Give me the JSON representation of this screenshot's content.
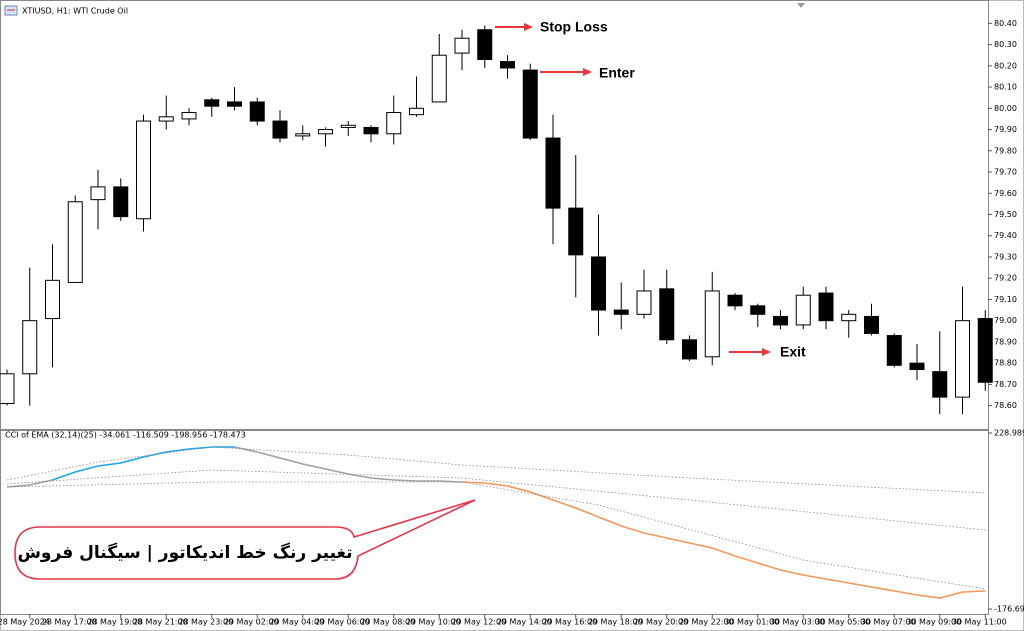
{
  "chart_data": [
    {
      "type": "candlestick",
      "title": "XTIUSD, H1: WTI Crude Oil",
      "categories": [
        null,
        "28 May 2024",
        null,
        "28 May 17:00",
        null,
        "28 May 19:00",
        null,
        "28 May 21:00",
        null,
        "28 May 23:00",
        null,
        "29 May 02:00",
        null,
        "29 May 04:00",
        null,
        "29 May 06:00",
        null,
        "29 May 08:00",
        null,
        "29 May 10:00",
        null,
        "29 May 12:00",
        null,
        "29 May 14:00",
        null,
        "29 May 16:00",
        null,
        "29 May 18:00",
        null,
        "29 May 20:00",
        null,
        "29 May 22:00",
        null,
        "30 May 01:00",
        null,
        "30 May 03:00",
        null,
        "30 May 05:00",
        null,
        "30 May 07:00",
        null,
        "30 May 09:00",
        null,
        "30 May 11:00"
      ],
      "open": [
        78.61,
        78.75,
        79.01,
        79.18,
        79.57,
        79.63,
        79.48,
        79.94,
        79.95,
        80.04,
        80.03,
        80.03,
        79.94,
        79.87,
        79.88,
        79.91,
        79.91,
        79.88,
        79.97,
        80.03,
        80.26,
        80.37,
        80.22,
        80.18,
        79.86,
        79.53,
        79.3,
        79.05,
        79.03,
        79.15,
        78.91,
        78.83,
        79.12,
        79.07,
        79.02,
        78.98,
        79.13,
        79.0,
        79.02,
        78.93,
        78.8,
        78.76,
        78.64,
        79.01
      ],
      "high": [
        78.77,
        79.25,
        79.36,
        79.59,
        79.71,
        79.67,
        79.97,
        80.06,
        80.0,
        80.05,
        80.1,
        80.05,
        79.99,
        79.92,
        79.91,
        79.94,
        79.92,
        80.06,
        80.15,
        80.35,
        80.37,
        80.39,
        80.25,
        80.21,
        79.97,
        79.78,
        79.5,
        79.18,
        79.24,
        79.24,
        78.93,
        79.23,
        79.13,
        79.08,
        79.05,
        79.16,
        79.16,
        79.05,
        79.08,
        78.94,
        78.89,
        78.95,
        79.16,
        79.05
      ],
      "low": [
        78.6,
        78.6,
        78.78,
        79.18,
        79.43,
        79.47,
        79.42,
        79.9,
        79.92,
        79.96,
        79.99,
        79.92,
        79.84,
        79.85,
        79.82,
        79.87,
        79.84,
        79.83,
        79.96,
        80.03,
        80.18,
        80.19,
        80.14,
        79.85,
        79.36,
        79.11,
        78.93,
        78.96,
        79.01,
        78.89,
        78.81,
        78.79,
        79.05,
        78.97,
        78.96,
        78.96,
        78.96,
        78.92,
        78.93,
        78.78,
        78.72,
        78.56,
        78.56,
        78.67
      ],
      "close": [
        78.75,
        79.0,
        79.19,
        79.56,
        79.63,
        79.49,
        79.94,
        79.96,
        79.98,
        80.01,
        80.01,
        79.94,
        79.86,
        79.88,
        79.9,
        79.92,
        79.88,
        79.98,
        80.0,
        80.25,
        80.33,
        80.23,
        80.19,
        79.86,
        79.53,
        79.31,
        79.05,
        79.03,
        79.14,
        78.91,
        78.82,
        79.14,
        79.07,
        79.03,
        78.98,
        79.12,
        79.0,
        79.03,
        78.94,
        78.79,
        78.77,
        78.64,
        79.0,
        78.71
      ],
      "up_color": "#ffffff",
      "down_color": "#000000",
      "ylim": [
        78.49,
        80.51
      ],
      "yticks": [
        {
          "value": 78.6,
          "label": "78.60"
        },
        {
          "value": 78.7,
          "label": "78.70"
        },
        {
          "value": 78.8,
          "label": "78.80"
        },
        {
          "value": 78.9,
          "label": "78.90"
        },
        {
          "value": 79.0,
          "label": "79.00"
        },
        {
          "value": 79.1,
          "label": "79.10"
        },
        {
          "value": 79.2,
          "label": "79.20"
        },
        {
          "value": 79.3,
          "label": "79.30"
        },
        {
          "value": 79.4,
          "label": "79.40"
        },
        {
          "value": 79.5,
          "label": "79.50"
        },
        {
          "value": 79.6,
          "label": "79.60"
        },
        {
          "value": 79.7,
          "label": "79.70"
        },
        {
          "value": 79.8,
          "label": "79.80"
        },
        {
          "value": 79.9,
          "label": "79.90"
        },
        {
          "value": 80.0,
          "label": "80.00"
        },
        {
          "value": 80.1,
          "label": "80.10"
        },
        {
          "value": 80.2,
          "label": "80.20"
        },
        {
          "value": 80.3,
          "label": "80.30"
        },
        {
          "value": 80.4,
          "label": "80.40"
        }
      ],
      "annotations": [
        {
          "text": "Stop Loss",
          "color": "#e8353b"
        },
        {
          "text": "Enter",
          "color": "#1e9c34"
        },
        {
          "text": "Exit",
          "color": "#2536c8"
        }
      ]
    },
    {
      "type": "line",
      "title": "CCI of EMA (32,14)(25) -34.061 -116.509 -198.956 -178.473",
      "series": [
        {
          "color": "#a0a0a0",
          "values": [
            104.5,
            109.1,
            120.7,
            null,
            null,
            null,
            null,
            null,
            null,
            null,
            196.7,
            185.2,
            171.4,
            157.5,
            146.0,
            134.5,
            125.3,
            120.7,
            118.4,
            118.4,
            116.1,
            null,
            null,
            null,
            null,
            null,
            null,
            null,
            null,
            null,
            null,
            null,
            null,
            null,
            null,
            null,
            null,
            null,
            null,
            null,
            null,
            null,
            null,
            null
          ]
        },
        {
          "color": "#1ea7e8",
          "values": [
            null,
            null,
            120.7,
            139.1,
            152.9,
            159.8,
            173.7,
            185.2,
            192.1,
            196.7,
            196.7,
            null,
            null,
            null,
            null,
            null,
            null,
            null,
            null,
            null,
            null,
            null,
            null,
            null,
            null,
            null,
            null,
            null,
            null,
            null,
            null,
            null,
            null,
            null,
            null,
            null,
            null,
            null,
            null,
            null,
            null,
            null,
            null,
            null
          ]
        },
        {
          "color": "#f4975a",
          "values": [
            null,
            null,
            null,
            null,
            null,
            null,
            null,
            null,
            null,
            null,
            null,
            null,
            null,
            null,
            null,
            null,
            null,
            null,
            null,
            null,
            116.1,
            113.7,
            106.8,
            93.0,
            74.6,
            56.1,
            35.4,
            14.6,
            -1.5,
            -13.0,
            -24.6,
            -36.1,
            -54.5,
            -70.7,
            -86.8,
            -98.3,
            -107.5,
            -116.8,
            -126.0,
            -135.2,
            -144.4,
            -151.3,
            -137.5,
            -135.2
          ]
        },
        {
          "color": "#8a8a8a",
          "dashed": true,
          "x": [
            0,
            4,
            9,
            15,
            20,
            30,
            43
          ],
          "values": [
            120.7,
            162.2,
            196.7,
            178.3,
            155.2,
            125.3,
            90.7
          ]
        },
        {
          "color": "#8a8a8a",
          "dashed": true,
          "x": [
            0,
            9,
            20,
            30,
            43
          ],
          "values": [
            111.4,
            143.7,
            125.3,
            74.6,
            5.4
          ]
        },
        {
          "color": "#8a8a8a",
          "dashed": true,
          "x": [
            0,
            9,
            20,
            26,
            35,
            43
          ],
          "values": [
            104.5,
            116.1,
            116.1,
            63.0,
            -63.7,
            -130.6
          ]
        }
      ],
      "ylim": [
        -188.2,
        235.9
      ],
      "yticks": [
        228.989,
        -176.695
      ],
      "annotations": [
        {
          "text": "تغییر رنگ خط اندیکاتور | سیگنال فروش",
          "color": "#e8354c"
        }
      ]
    }
  ]
}
